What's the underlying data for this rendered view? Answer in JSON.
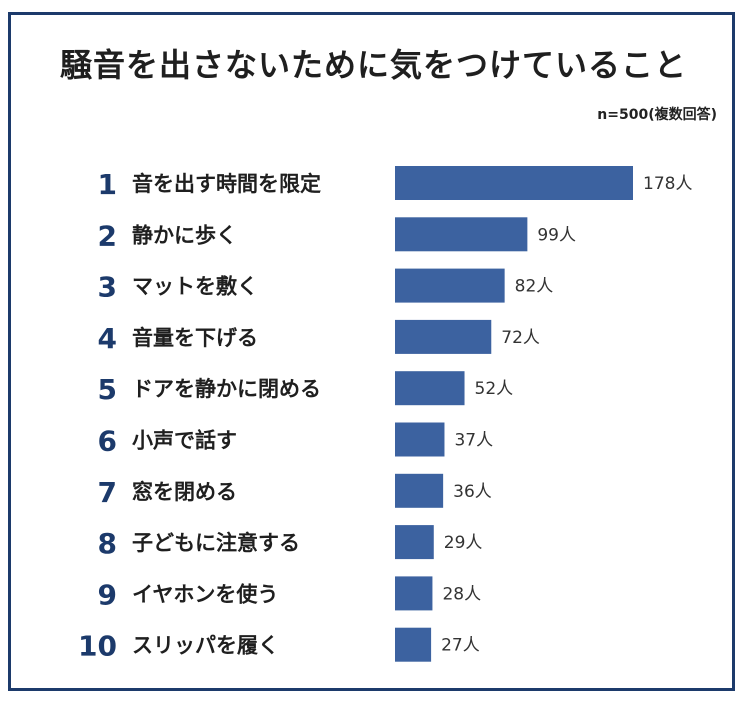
{
  "title": "騒音を出さないために気をつけていること",
  "sample_note": "n=500(複数回答)",
  "colors": {
    "bar": "#3c62a0",
    "rank": "#1c3a6b",
    "frame": "#1c3a6b",
    "text": "#1f1f1f"
  },
  "chart_data": {
    "type": "bar",
    "orientation": "horizontal",
    "title": "騒音を出さないために気をつけていること",
    "unit": "人",
    "xlim": [
      0,
      178
    ],
    "grid": false,
    "legend": "none",
    "categories": [
      "音を出す時間を限定",
      "静かに歩く",
      "マットを敷く",
      "音量を下げる",
      "ドアを静かに閉める",
      "小声で話す",
      "窓を閉める",
      "子どもに注意する",
      "イヤホンを使う",
      "スリッパを履く"
    ],
    "ranks": [
      "1",
      "2",
      "3",
      "4",
      "5",
      "6",
      "7",
      "8",
      "9",
      "10"
    ],
    "values": [
      178,
      99,
      82,
      72,
      52,
      37,
      36,
      29,
      28,
      27
    ],
    "value_labels": [
      "178人",
      "99人",
      "82人",
      "72人",
      "52人",
      "37人",
      "36人",
      "29人",
      "28人",
      "27人"
    ]
  }
}
